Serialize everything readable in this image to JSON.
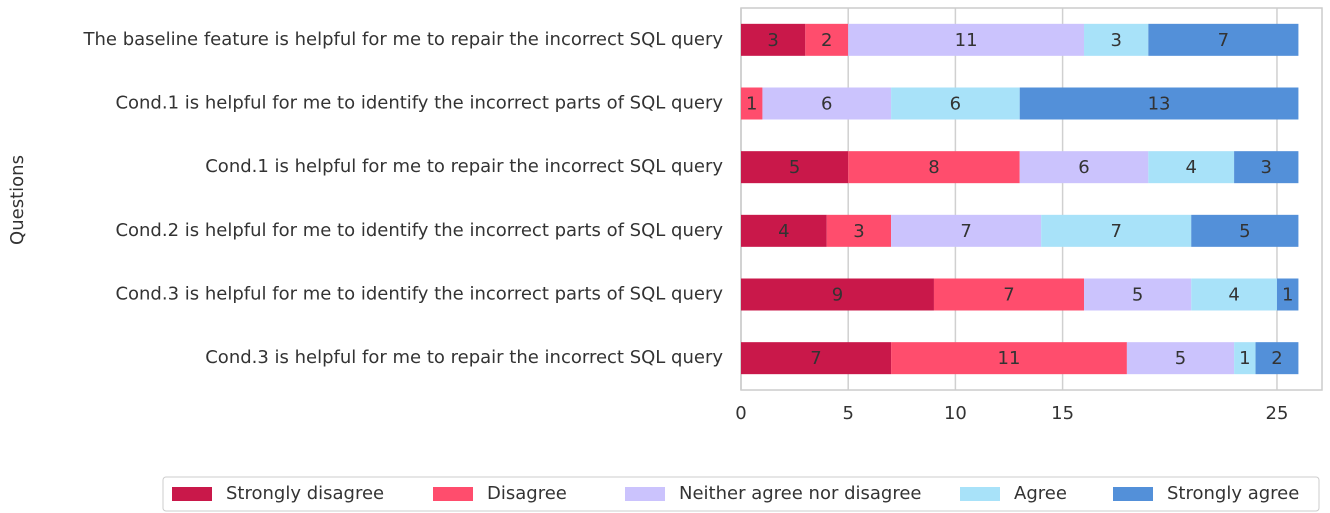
{
  "chart_data": {
    "type": "stacked_barh",
    "y_label": "Questions",
    "categories": [
      "The baseline feature is helpful for me to repair the incorrect SQL query",
      "Cond.1 is helpful for me to identify the incorrect parts of SQL query",
      "Cond.1 is helpful for me to repair the incorrect SQL query",
      "Cond.2 is helpful for me to identify the incorrect parts of SQL query",
      "Cond.3 is helpful for me to identify the incorrect parts of SQL query",
      "Cond.3 is helpful for me to repair the incorrect SQL query"
    ],
    "series": [
      {
        "name": "Strongly disagree",
        "color": "#c9184a",
        "values": [
          3,
          0,
          5,
          4,
          9,
          7
        ]
      },
      {
        "name": "Disagree",
        "color": "#ff4d6d",
        "values": [
          2,
          1,
          8,
          3,
          7,
          11
        ]
      },
      {
        "name": "Neither agree nor disagree",
        "color": "#cbc3fd",
        "values": [
          11,
          6,
          6,
          7,
          5,
          5
        ]
      },
      {
        "name": "Agree",
        "color": "#a8e2f9",
        "values": [
          3,
          6,
          4,
          7,
          4,
          1
        ]
      },
      {
        "name": "Strongly agree",
        "color": "#5390d9",
        "values": [
          7,
          13,
          3,
          5,
          1,
          2
        ]
      }
    ],
    "xlim": [
      0,
      27.1
    ],
    "xticks": [
      0,
      5,
      10,
      15,
      25
    ],
    "grid": true,
    "legend": "bottom"
  }
}
